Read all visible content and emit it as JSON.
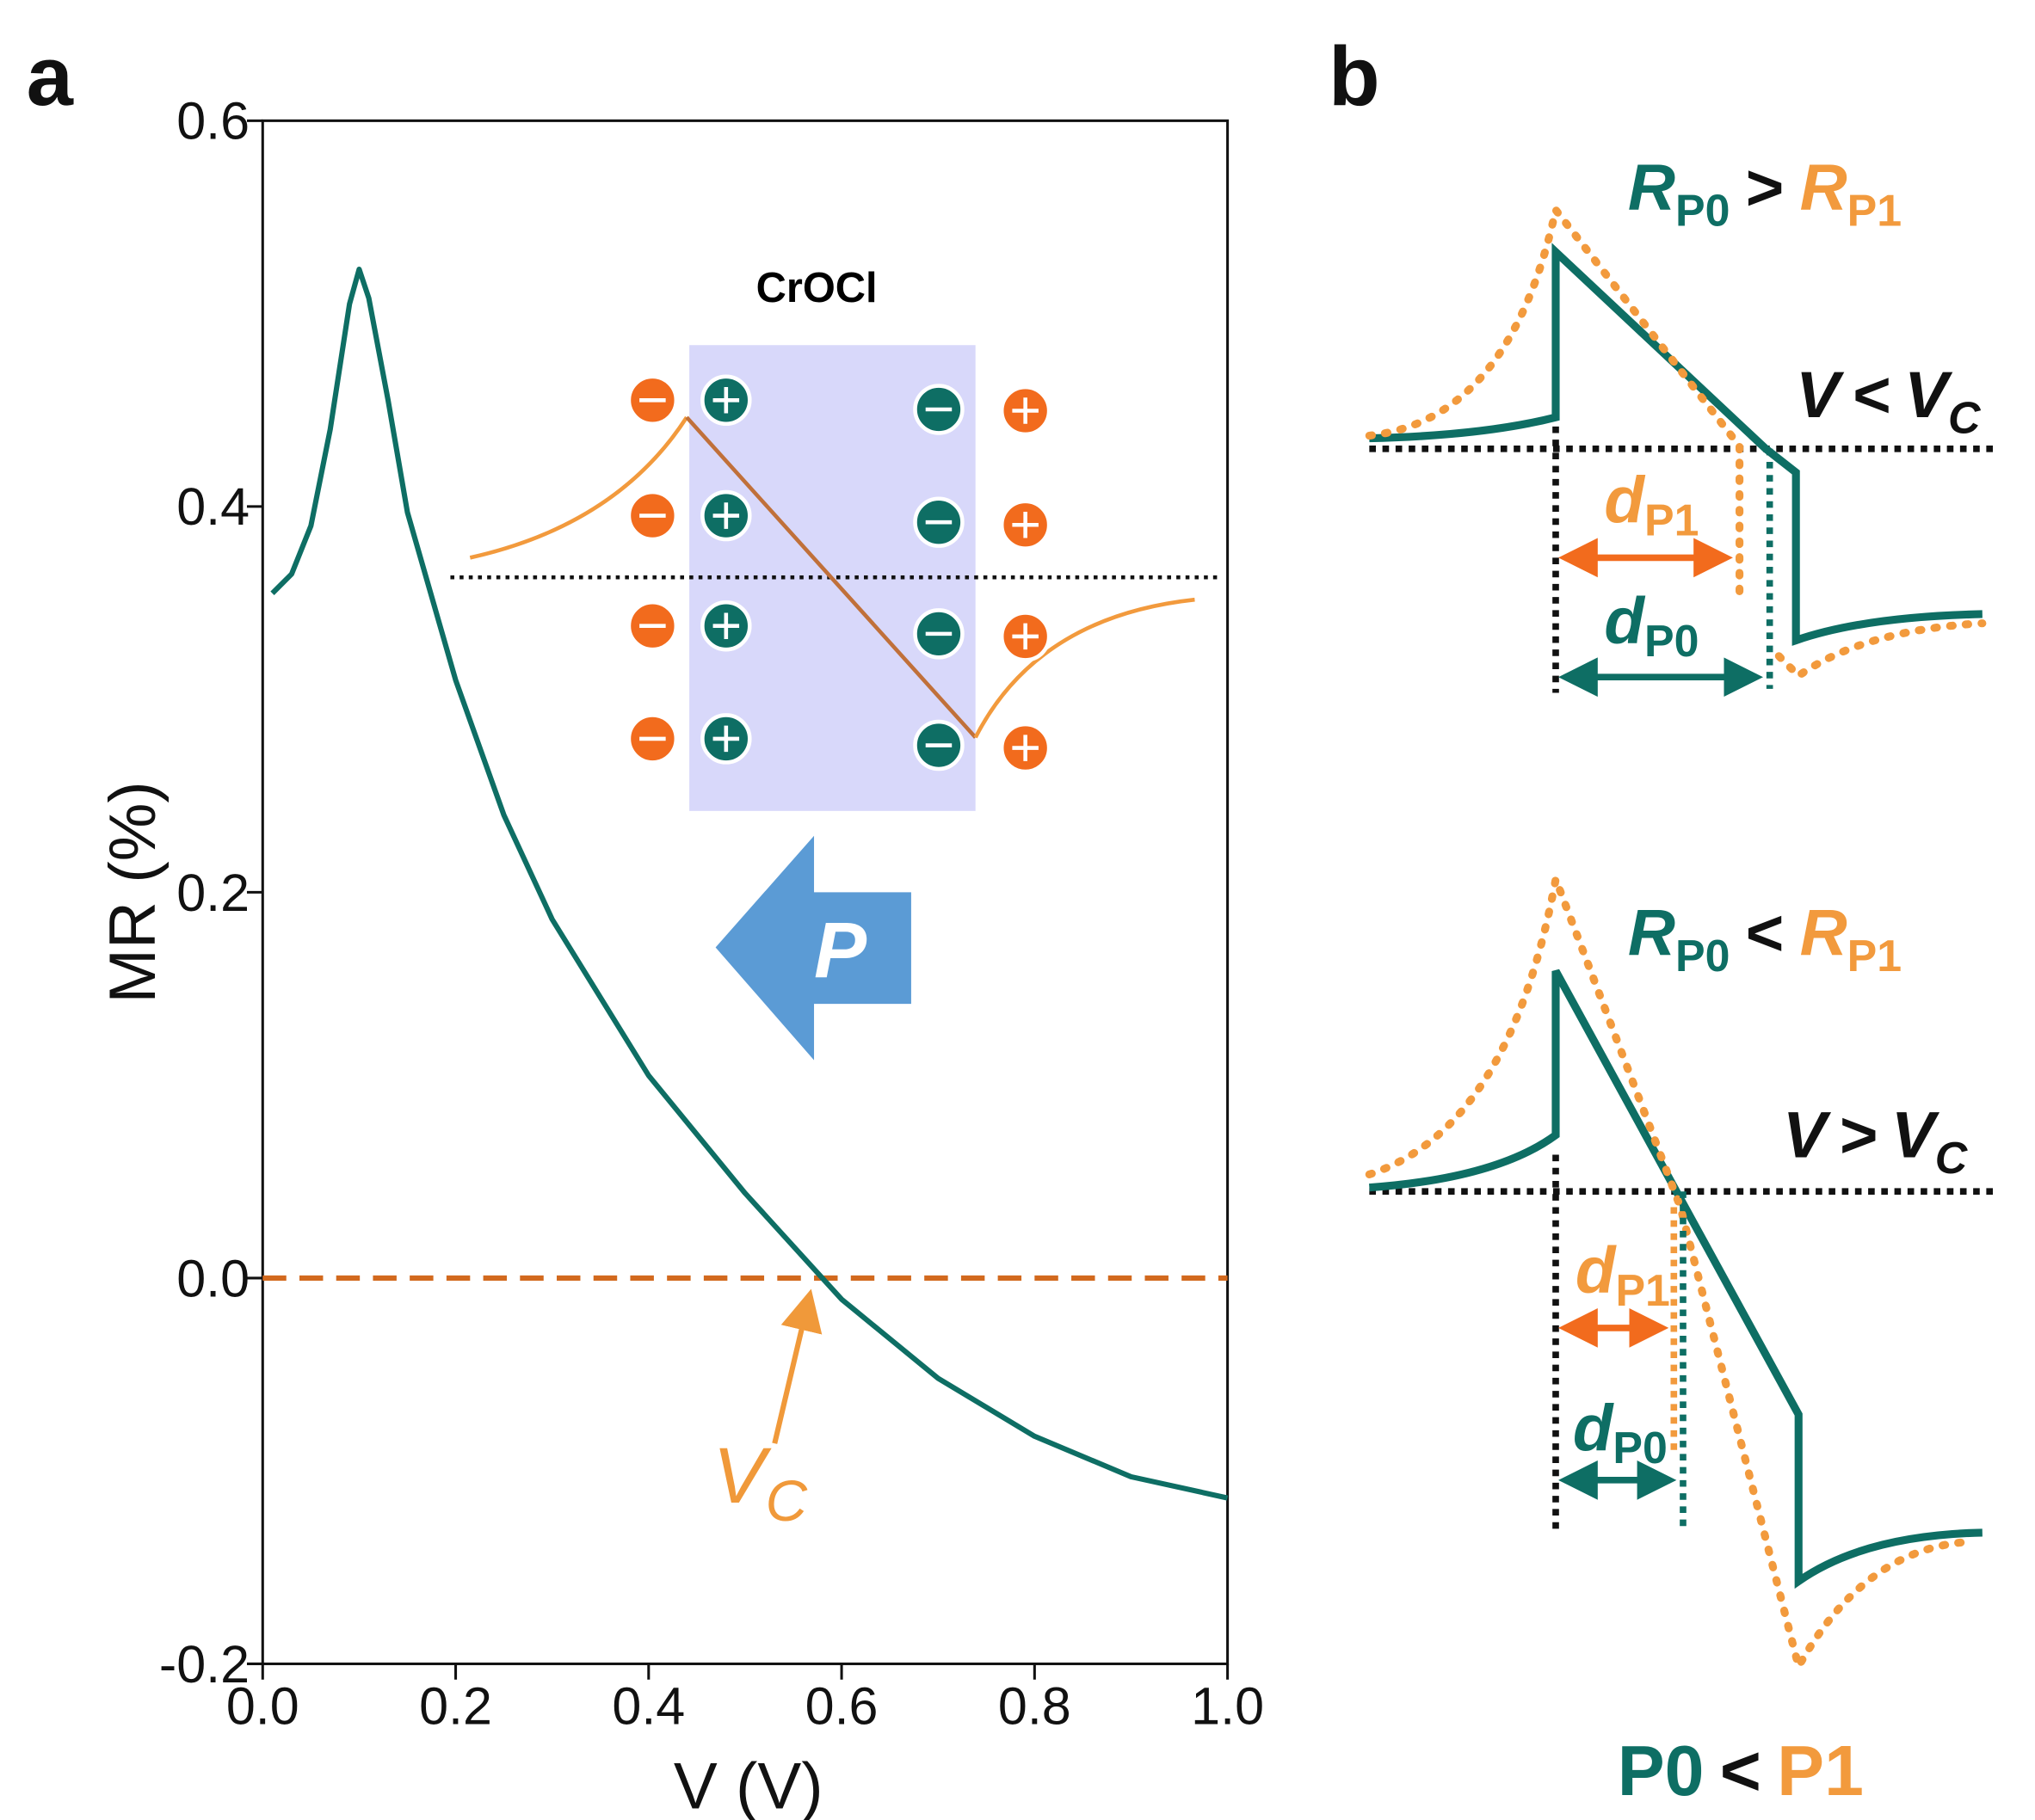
{
  "chart_data": {
    "type": "line",
    "panel_label": "a",
    "x": [
      0.01,
      0.03,
      0.05,
      0.07,
      0.09,
      0.1,
      0.11,
      0.13,
      0.15,
      0.2,
      0.25,
      0.3,
      0.4,
      0.5,
      0.58,
      0.6,
      0.7,
      0.8,
      0.9,
      1.0
    ],
    "values": [
      0.355,
      0.365,
      0.39,
      0.44,
      0.505,
      0.523,
      0.508,
      0.455,
      0.397,
      0.31,
      0.24,
      0.186,
      0.105,
      0.044,
      0.0,
      -0.011,
      -0.052,
      -0.082,
      -0.103,
      -0.114
    ],
    "color": "#0e6e64",
    "xlabel": "V (V)",
    "ylabel": "MR (%)",
    "xlim": [
      0,
      1
    ],
    "ylim": [
      -0.2,
      0.6
    ],
    "xticks": [
      {
        "value": 0,
        "label": "0.0"
      },
      0.2,
      0.4,
      0.6,
      0.8,
      {
        "value": 1,
        "label": "1.0"
      }
    ],
    "yticks": [
      -0.2,
      {
        "value": 0,
        "label": "0.0"
      },
      0.2,
      0.4,
      0.6
    ],
    "annotations": {
      "vc": "V",
      "vc_sub": "C",
      "material": "CrOCl",
      "polarization": "P"
    }
  },
  "panel_b": {
    "label": "b",
    "top": {
      "r1": "R",
      "r1_sub": "P0",
      "rel": ">",
      "r2": "R",
      "r2_sub": "P1",
      "v": "V",
      "vrel": "<",
      "vc": "V",
      "vc_sub": "C",
      "d1": "d",
      "d1_sub": "P1",
      "d0": "d",
      "d0_sub": "P0"
    },
    "bottom": {
      "r1": "R",
      "r1_sub": "P0",
      "rel": "<",
      "r2": "R",
      "r2_sub": "P1",
      "v": "V",
      "vrel": ">",
      "vc": "V",
      "vc_sub": "C",
      "d1": "d",
      "d1_sub": "P1",
      "d0": "d",
      "d0_sub": "P0"
    },
    "footer": {
      "p0": "P0",
      "rel": "<",
      "p1": "P1"
    }
  }
}
